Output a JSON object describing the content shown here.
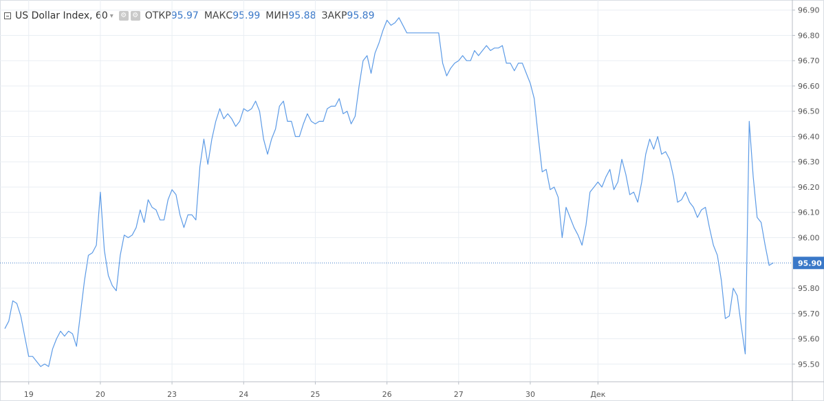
{
  "legend": {
    "symbol": "US Dollar Index, 60",
    "open_label": "ОТКР",
    "open_value": "95.97",
    "high_label": "МАКС",
    "high_value": "95.99",
    "low_label": "МИН",
    "low_value": "95.88",
    "close_label": "ЗАКР",
    "close_value": "95.89"
  },
  "colors": {
    "line": "#5b9ae6",
    "grid": "#e9eef3",
    "axis": "#555555",
    "price_tag": "#3a78c8",
    "price_line": "#3a78c8"
  },
  "chart_data": {
    "type": "line",
    "ylim": [
      95.43,
      96.94
    ],
    "y_ticks": [
      "95.50",
      "95.60",
      "95.70",
      "95.80",
      "96.00",
      "96.10",
      "96.20",
      "96.30",
      "96.40",
      "96.50",
      "96.60",
      "96.70",
      "96.80",
      "96.90"
    ],
    "last_price_label": "95.90",
    "last_price": 95.9,
    "x_ticks": [
      {
        "label": "19",
        "index": 6
      },
      {
        "label": "20",
        "index": 24
      },
      {
        "label": "23",
        "index": 42
      },
      {
        "label": "24",
        "index": 60
      },
      {
        "label": "25",
        "index": 78
      },
      {
        "label": "26",
        "index": 96
      },
      {
        "label": "27",
        "index": 114
      },
      {
        "label": "30",
        "index": 132
      },
      {
        "label": "Дек",
        "index": 149
      }
    ],
    "series": [
      {
        "values": [
          95.64,
          95.67,
          95.75,
          95.74,
          95.69,
          95.61,
          95.53,
          95.53,
          95.51,
          95.49,
          95.5,
          95.49,
          95.56,
          95.6,
          95.63,
          95.61,
          95.63,
          95.62,
          95.57,
          95.7,
          95.83,
          95.93,
          95.94,
          95.97,
          96.18,
          95.95,
          95.85,
          95.81,
          95.79,
          95.93,
          96.01,
          96.0,
          96.01,
          96.04,
          96.11,
          96.06,
          96.15,
          96.12,
          96.11,
          96.07,
          96.07,
          96.15,
          96.19,
          96.17,
          96.09,
          96.04,
          96.09,
          96.09,
          96.07,
          96.28,
          96.39,
          96.29,
          96.39,
          96.46,
          96.51,
          96.47,
          96.49,
          96.47,
          96.44,
          96.46,
          96.51,
          96.5,
          96.51,
          96.54,
          96.5,
          96.39,
          96.33,
          96.39,
          96.43,
          96.52,
          96.54,
          96.46,
          96.46,
          96.4,
          96.4,
          96.45,
          96.49,
          96.46,
          96.45,
          96.46,
          96.46,
          96.51,
          96.52,
          96.52,
          96.55,
          96.49,
          96.5,
          96.45,
          96.48,
          96.6,
          96.7,
          96.72,
          96.65,
          96.73,
          96.77,
          96.82,
          96.86,
          96.84,
          96.85,
          96.87,
          96.84,
          96.81,
          96.81,
          96.81,
          96.81,
          96.81,
          96.81,
          96.81,
          96.81,
          96.81,
          96.69,
          96.64,
          96.67,
          96.69,
          96.7,
          96.72,
          96.7,
          96.7,
          96.74,
          96.72,
          96.74,
          96.76,
          96.74,
          96.75,
          96.75,
          96.76,
          96.69,
          96.69,
          96.66,
          96.69,
          96.69,
          96.65,
          96.61,
          96.55,
          96.4,
          96.26,
          96.27,
          96.19,
          96.2,
          96.16,
          96.0,
          96.12,
          96.08,
          96.04,
          96.01,
          95.97,
          96.05,
          96.18,
          96.2,
          96.22,
          96.2,
          96.24,
          96.27,
          96.19,
          96.22,
          96.31,
          96.25,
          96.17,
          96.18,
          96.14,
          96.22,
          96.33,
          96.39,
          96.35,
          96.4,
          96.33,
          96.34,
          96.31,
          96.24,
          96.14,
          96.15,
          96.18,
          96.14,
          96.12,
          96.08,
          96.11,
          96.12,
          96.04,
          95.97,
          95.93,
          95.83,
          95.68,
          95.69,
          95.8,
          95.77,
          95.65,
          95.54,
          96.46,
          96.24,
          96.08,
          96.06,
          95.97,
          95.89,
          95.9
        ]
      }
    ]
  }
}
